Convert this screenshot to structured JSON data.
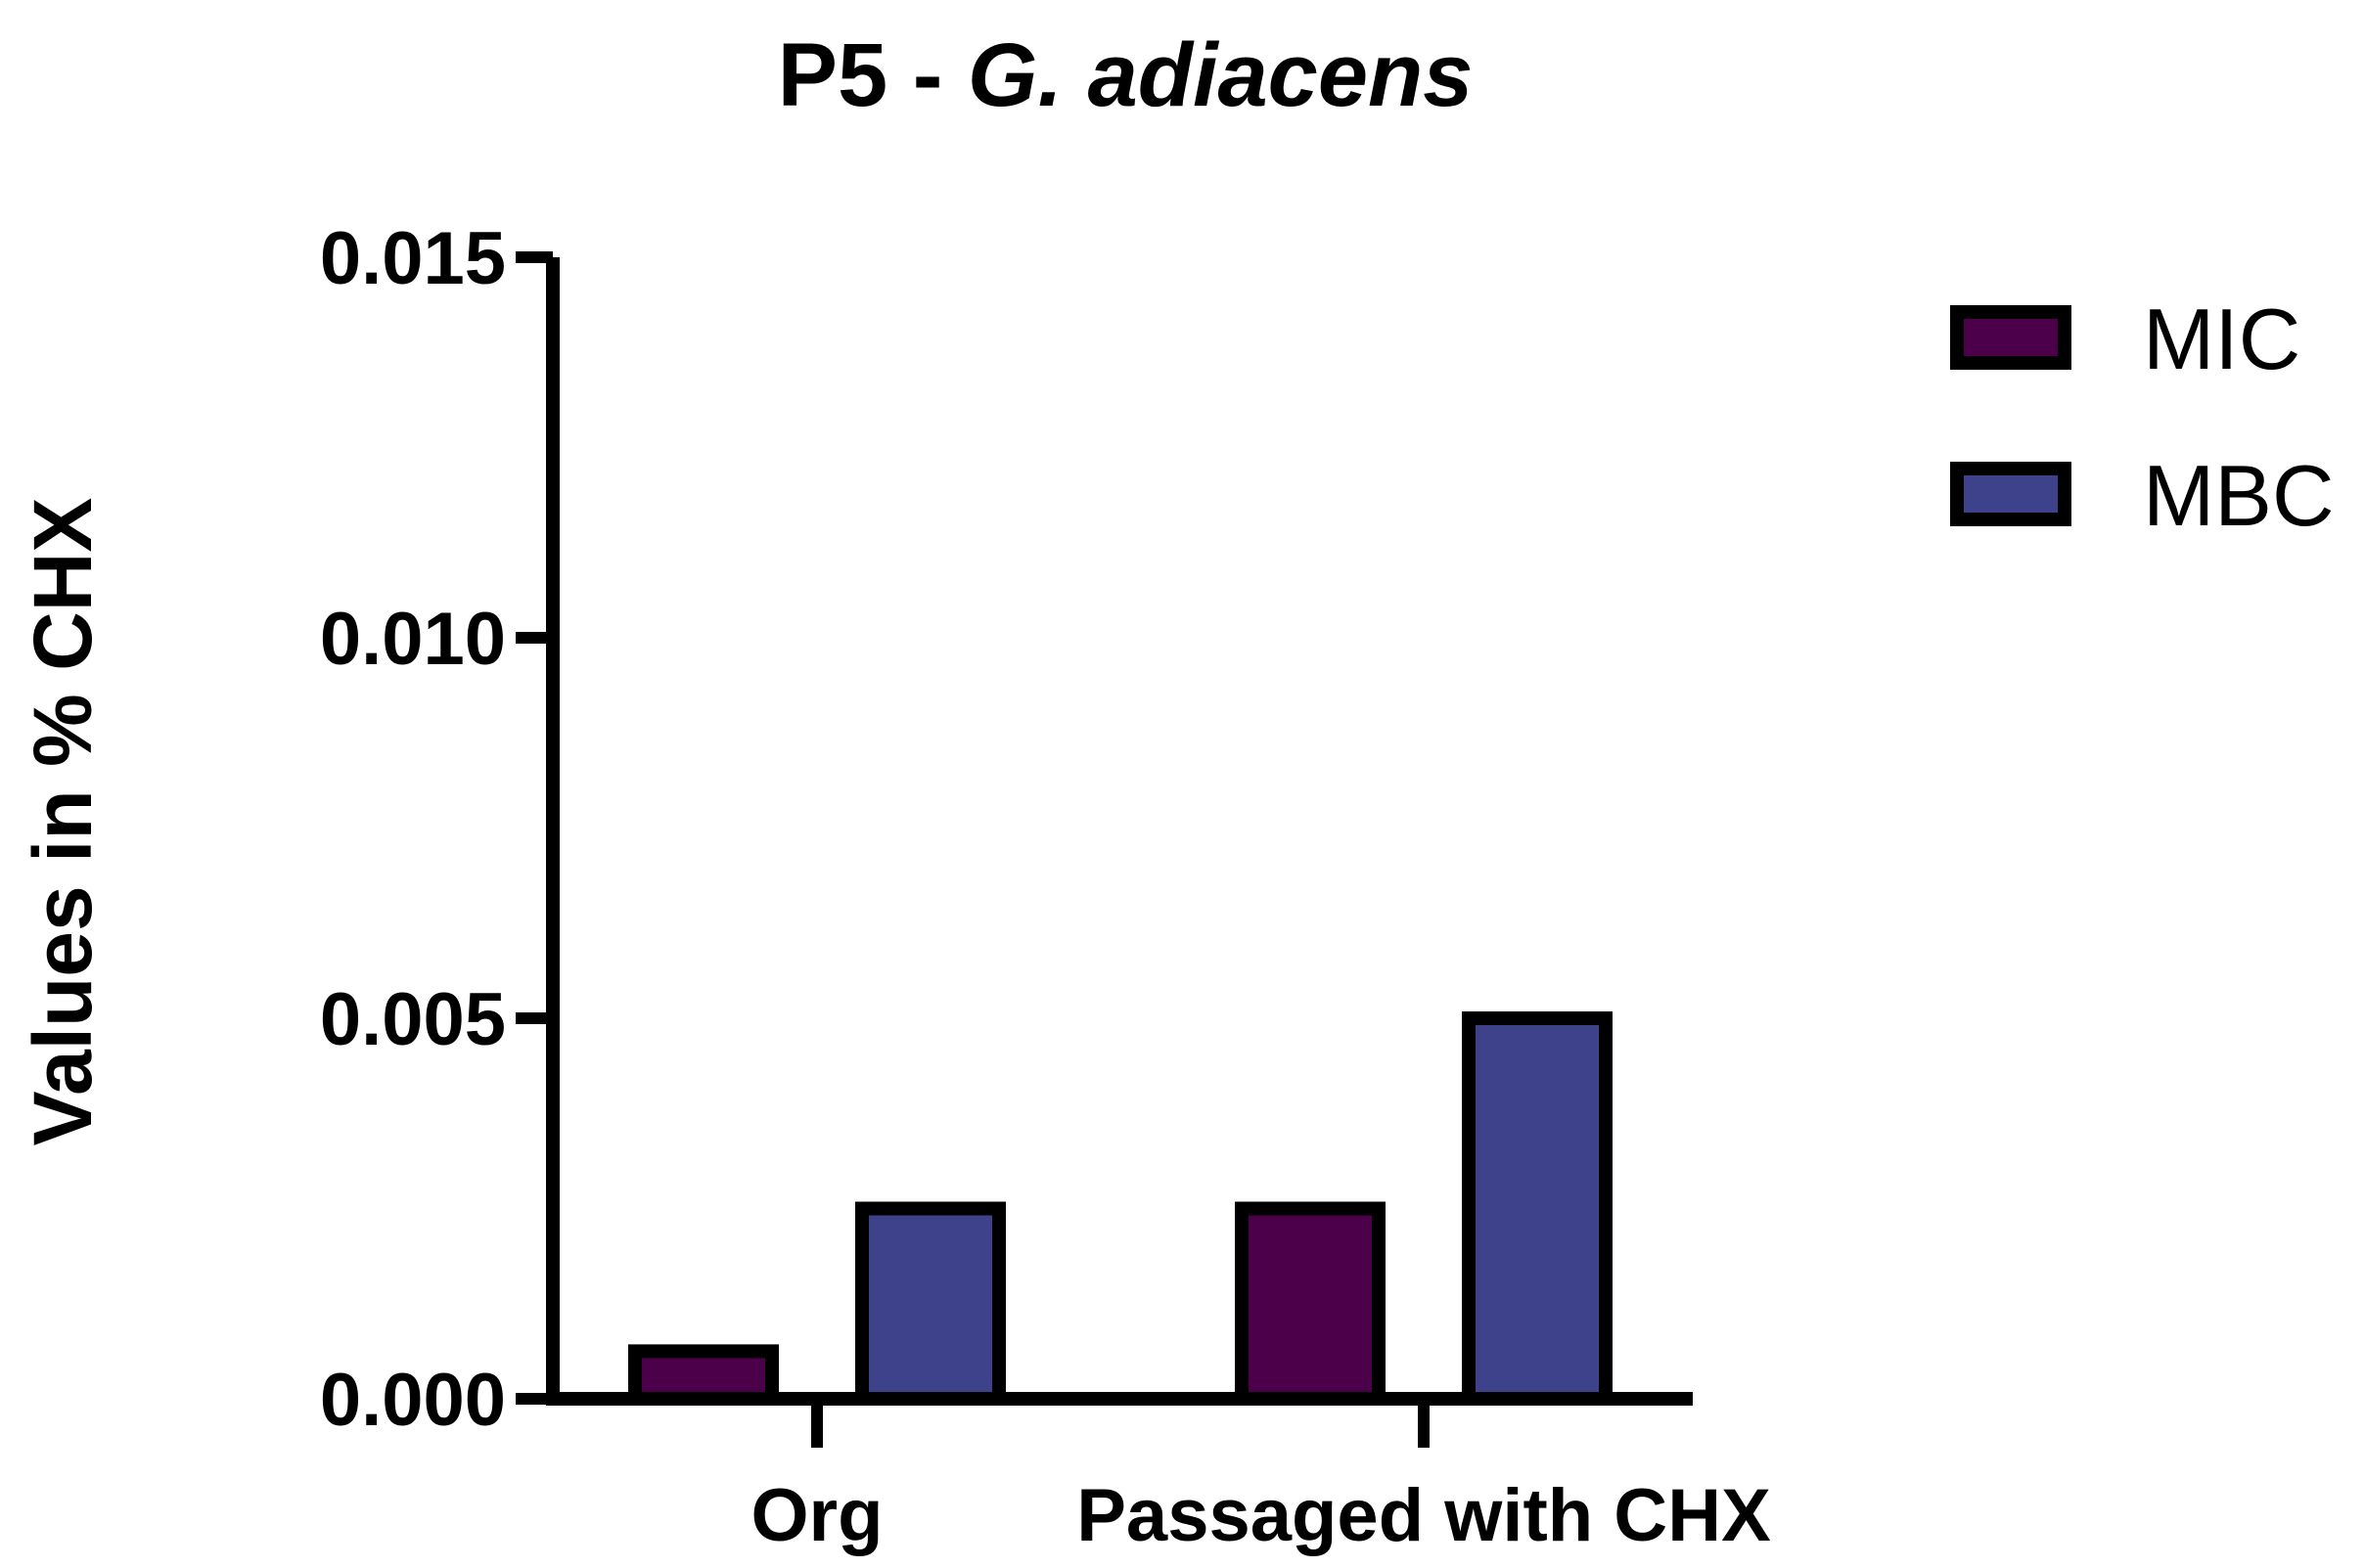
{
  "chart_data": {
    "type": "bar",
    "title": "P5 - ",
    "title_italic": "G. adiacens",
    "xlabel": "",
    "ylabel": "Values in % CHX",
    "categories": [
      "Org",
      "Passaged with CHX"
    ],
    "series": [
      {
        "name": "MIC",
        "values": [
          0.000625,
          0.0025
        ],
        "color": "#4b0049"
      },
      {
        "name": "MBC",
        "values": [
          0.0025,
          0.005
        ],
        "color": "#3e428a"
      }
    ],
    "ylim": [
      0,
      0.015
    ],
    "yticks": [
      "0.000",
      "0.005",
      "0.010",
      "0.015"
    ],
    "ytick_values": [
      0,
      0.005,
      0.01,
      0.015
    ],
    "grid": false,
    "legend_position": "top-right"
  }
}
